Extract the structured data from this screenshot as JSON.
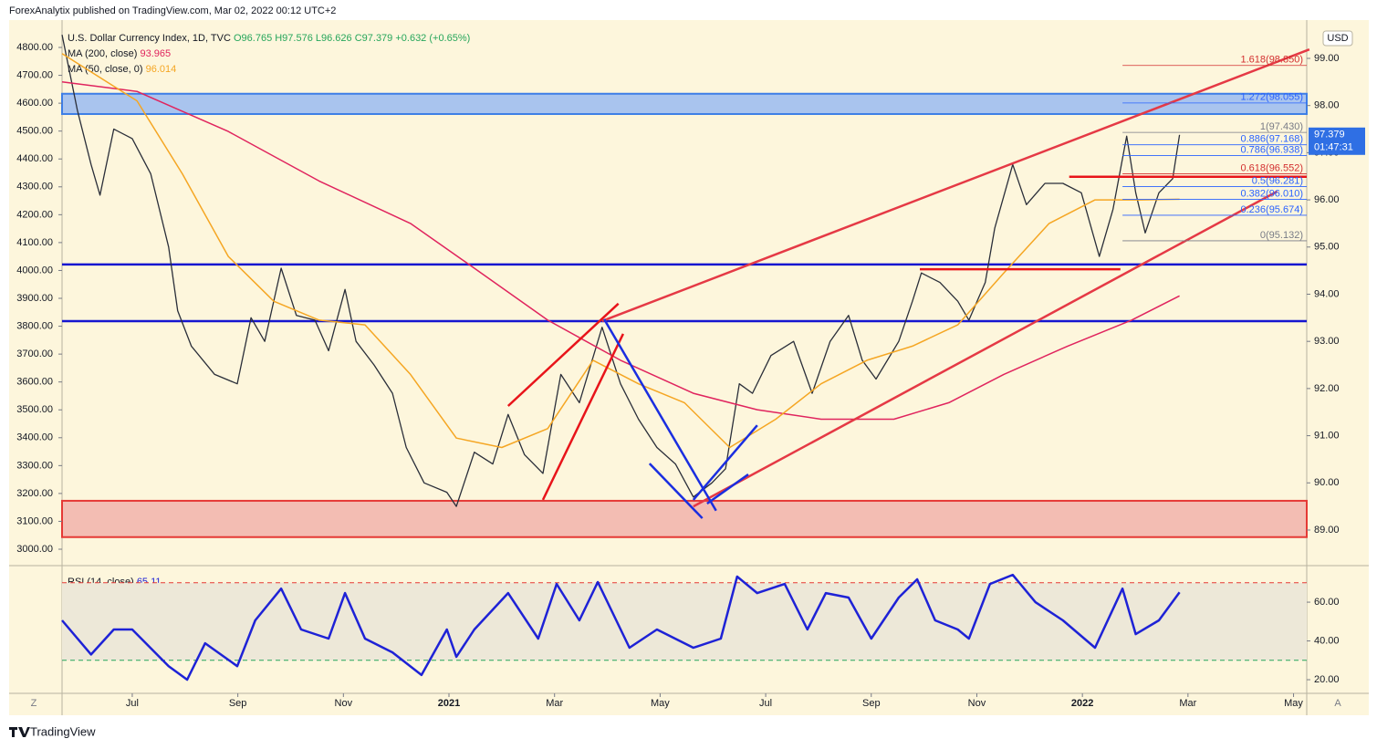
{
  "header": {
    "publisher": "ForexAnalytix published on TradingView.com, Mar 02, 2022 00:12 UTC+2"
  },
  "footer": "TradingView",
  "controls": {
    "zoom": "Z",
    "auto": "A"
  },
  "chart_data": [
    {
      "type": "line",
      "title": "U.S. Dollar Currency Index, 1D, TVC",
      "quote": "O96.765 H97.576 L96.626 C97.379 +0.632 (+0.65%)",
      "currency": "USD",
      "xlim": [
        4.67,
        28.25
      ],
      "xticks": [
        {
          "value": 6,
          "label": "Jul"
        },
        {
          "value": 8,
          "label": "Sep"
        },
        {
          "value": 10,
          "label": "Nov"
        },
        {
          "value": 12,
          "label": "2021"
        },
        {
          "value": 14,
          "label": "Mar"
        },
        {
          "value": 16,
          "label": "May"
        },
        {
          "value": 18,
          "label": "Jul"
        },
        {
          "value": 20,
          "label": "Sep"
        },
        {
          "value": 22,
          "label": "Nov"
        },
        {
          "value": 24,
          "label": "2022"
        },
        {
          "value": 26,
          "label": "Mar"
        },
        {
          "value": 28,
          "label": "May"
        }
      ],
      "ylim": [
        88.342,
        99.754
      ],
      "yticks": [
        {
          "value": 99,
          "label": "99.00"
        },
        {
          "value": 98,
          "label": "98.00"
        },
        {
          "value": 97,
          "label": "97.00"
        },
        {
          "value": 96,
          "label": "96.00"
        },
        {
          "value": 95,
          "label": "95.00"
        },
        {
          "value": 94,
          "label": "94.00"
        },
        {
          "value": 93,
          "label": "93.00"
        },
        {
          "value": 92,
          "label": "92.00"
        },
        {
          "value": 91,
          "label": "91.00"
        },
        {
          "value": 90,
          "label": "90.00"
        },
        {
          "value": 89,
          "label": "89.00"
        }
      ],
      "y2lim": [
        2957.5,
        4888.4
      ],
      "y2ticks": [
        {
          "value": 4800,
          "label": "4800.00"
        },
        {
          "value": 4700,
          "label": "4700.00"
        },
        {
          "value": 4600,
          "label": "4600.00"
        },
        {
          "value": 4500,
          "label": "4500.00"
        },
        {
          "value": 4400,
          "label": "4400.00"
        },
        {
          "value": 4300,
          "label": "4300.00"
        },
        {
          "value": 4200,
          "label": "4200.00"
        },
        {
          "value": 4100,
          "label": "4100.00"
        },
        {
          "value": 4000,
          "label": "4000.00"
        },
        {
          "value": 3900,
          "label": "3900.00"
        },
        {
          "value": 3800,
          "label": "3800.00"
        },
        {
          "value": 3700,
          "label": "3700.00"
        },
        {
          "value": 3600,
          "label": "3600.00"
        },
        {
          "value": 3500,
          "label": "3500.00"
        },
        {
          "value": 3400,
          "label": "3400.00"
        },
        {
          "value": 3300,
          "label": "3300.00"
        },
        {
          "value": 3200,
          "label": "3200.00"
        },
        {
          "value": 3100,
          "label": "3100.00"
        },
        {
          "value": 3000,
          "label": "3000.00"
        }
      ],
      "grid": false,
      "series": [
        {
          "color": "#2a2e39",
          "x": [
            4.67,
            4.96,
            5.22,
            5.39,
            5.65,
            6.0,
            6.35,
            6.69,
            6.86,
            7.12,
            7.56,
            7.99,
            8.25,
            8.51,
            8.82,
            9.11,
            9.46,
            9.72,
            10.03,
            10.24,
            10.58,
            10.93,
            11.19,
            11.53,
            11.96,
            12.14,
            12.48,
            12.83,
            13.12,
            13.43,
            13.78,
            14.12,
            14.47,
            14.9,
            15.25,
            15.59,
            15.94,
            16.29,
            16.63,
            16.98,
            17.24,
            17.5,
            17.75,
            18.1,
            18.53,
            18.88,
            19.22,
            19.57,
            19.83,
            20.09,
            20.52,
            20.78,
            20.95,
            21.3,
            21.64,
            21.85,
            22.16,
            22.34,
            22.68,
            22.94,
            23.29,
            23.63,
            23.98,
            24.32,
            24.58,
            24.84,
            25.01,
            25.19,
            25.45,
            25.71,
            25.84
          ],
          "values": [
            99.5,
            97.9,
            96.75,
            96.1,
            97.5,
            97.3,
            96.55,
            95.0,
            93.65,
            92.9,
            92.3,
            92.1,
            93.5,
            93.0,
            94.55,
            93.55,
            93.45,
            92.8,
            94.1,
            93.0,
            92.5,
            91.9,
            90.75,
            90.0,
            89.8,
            89.5,
            90.65,
            90.4,
            91.45,
            90.6,
            90.2,
            92.3,
            91.7,
            93.3,
            92.1,
            91.35,
            90.75,
            90.4,
            89.7,
            90.0,
            90.3,
            92.1,
            91.9,
            92.7,
            93.0,
            91.9,
            93.0,
            93.55,
            92.6,
            92.2,
            93.0,
            93.85,
            94.45,
            94.25,
            93.85,
            93.45,
            94.25,
            95.4,
            96.75,
            95.9,
            96.35,
            96.35,
            96.15,
            94.8,
            95.8,
            97.35,
            96.15,
            95.3,
            96.15,
            96.45,
            97.379
          ]
        },
        {
          "name": "MA (200, close)",
          "last": 93.965,
          "color": "#e0245e",
          "x": [
            4.67,
            6.09,
            7.82,
            9.54,
            11.27,
            12.48,
            13.87,
            15.25,
            16.63,
            17.84,
            19.05,
            20.43,
            21.47,
            22.51,
            23.72,
            24.93,
            25.84
          ],
          "values": [
            98.5,
            98.3,
            97.45,
            96.4,
            95.5,
            94.55,
            93.45,
            92.6,
            91.9,
            91.55,
            91.35,
            91.35,
            91.7,
            92.3,
            92.9,
            93.45,
            93.965
          ]
        },
        {
          "name": "MA (50, close, 0)",
          "last": 96.014,
          "color": "#f5a623",
          "x": [
            4.67,
            6.09,
            6.95,
            7.82,
            8.68,
            9.54,
            10.41,
            11.27,
            12.14,
            13.0,
            13.87,
            14.73,
            15.59,
            16.46,
            17.32,
            18.19,
            19.05,
            19.92,
            20.78,
            21.64,
            22.51,
            23.37,
            24.24,
            25.1,
            25.84
          ],
          "values": [
            99.1,
            98.1,
            96.55,
            94.8,
            93.85,
            93.45,
            93.35,
            92.3,
            90.95,
            90.75,
            91.15,
            92.6,
            92.1,
            91.7,
            90.75,
            91.35,
            92.1,
            92.6,
            92.9,
            93.35,
            94.45,
            95.5,
            96.0,
            96.0,
            96.014
          ]
        }
      ],
      "zones": [
        {
          "from": 97.82,
          "to": 98.25,
          "color": "#a9c4ee",
          "border": "#3d7ee6"
        },
        {
          "from": 88.85,
          "to": 89.62,
          "color": "#f3bdb3",
          "border": "#e53935"
        }
      ],
      "hlines": [
        {
          "value": 94.63,
          "color": "#1515d0"
        },
        {
          "value": 93.43,
          "color": "#1515d0"
        }
      ],
      "trendlines": [
        {
          "x": [
            14.9,
            28.3
          ],
          "y": [
            93.43,
            99.19
          ],
          "color": "#e53945"
        },
        {
          "x": [
            16.63,
            27.69
          ],
          "y": [
            89.5,
            96.18
          ],
          "color": "#e53945"
        },
        {
          "x": [
            13.12,
            15.21
          ],
          "y": [
            91.63,
            93.8
          ],
          "color": "#e8141a"
        },
        {
          "x": [
            13.78,
            15.3
          ],
          "y": [
            89.64,
            93.16
          ],
          "color": "#e8141a"
        },
        {
          "x": [
            14.94,
            17.06
          ],
          "y": [
            93.47,
            89.41
          ],
          "color": "#1a2ee0"
        },
        {
          "x": [
            15.8,
            16.8
          ],
          "y": [
            90.41,
            89.25
          ],
          "color": "#1a2ee0"
        },
        {
          "x": [
            16.63,
            17.84
          ],
          "y": [
            89.64,
            91.22
          ],
          "color": "#1a2ee0"
        },
        {
          "x": [
            16.89,
            17.67
          ],
          "y": [
            89.56,
            90.18
          ],
          "color": "#1a2ee0"
        },
        {
          "x": [
            20.92,
            24.72
          ],
          "y": [
            94.53,
            94.53
          ],
          "color": "#e8141a"
        },
        {
          "x": [
            23.75,
            28.25
          ],
          "y": [
            96.49,
            96.49
          ],
          "color": "#e8141a"
        }
      ],
      "fib_x": [
        24.76,
        28.25
      ],
      "fib_levels": [
        {
          "value": 98.85,
          "label": "1.618(98.850)",
          "color": "#d32f2f"
        },
        {
          "value": 98.055,
          "label": "1.272(98.055)",
          "color": "#2962ff"
        },
        {
          "value": 97.43,
          "label": "1(97.430)",
          "color": "#787b86"
        },
        {
          "value": 97.168,
          "label": "0.886(97.168)",
          "color": "#2962ff"
        },
        {
          "value": 96.938,
          "label": "0.786(96.938)",
          "color": "#2962ff"
        },
        {
          "value": 96.552,
          "label": "0.618(96.552)",
          "color": "#d32f2f"
        },
        {
          "value": 96.281,
          "label": "0.5(96.281)",
          "color": "#2962ff"
        },
        {
          "value": 96.01,
          "label": "0.382(96.010)",
          "color": "#2962ff"
        },
        {
          "value": 95.674,
          "label": "0.236(95.674)",
          "color": "#2962ff"
        },
        {
          "value": 95.132,
          "label": "0(95.132)",
          "color": "#787b86"
        }
      ],
      "price_tag": 97.379,
      "countdown": "01:47:31"
    },
    {
      "type": "line",
      "title": "RSI (14, close)",
      "ylim": [
        13.9,
        76.5
      ],
      "yticks": [
        {
          "value": 60,
          "label": "60.00"
        },
        {
          "value": 40,
          "label": "40.00"
        },
        {
          "value": 20,
          "label": "20.00"
        }
      ],
      "levels": [
        {
          "value": 70,
          "color": "#e53935"
        },
        {
          "value": 30,
          "color": "#26a65b"
        }
      ],
      "series": [
        {
          "last": 65.11,
          "color": "#1e22d6",
          "x": [
            4.67,
            5.22,
            5.65,
            6.0,
            6.69,
            7.04,
            7.38,
            7.99,
            8.33,
            8.82,
            9.2,
            9.72,
            10.03,
            10.41,
            10.93,
            11.48,
            11.96,
            12.14,
            12.48,
            13.12,
            13.69,
            14.04,
            14.47,
            14.82,
            15.42,
            15.94,
            16.63,
            17.15,
            17.46,
            17.84,
            18.36,
            18.79,
            19.14,
            19.57,
            20.0,
            20.52,
            20.87,
            21.21,
            21.64,
            21.85,
            22.25,
            22.68,
            23.11,
            23.63,
            24.24,
            24.76,
            25.01,
            25.45,
            25.84
          ],
          "values": [
            50.6,
            33,
            45.9,
            45.9,
            27,
            20,
            38.8,
            27,
            50.6,
            67,
            45.9,
            41.2,
            64.7,
            41.2,
            34.1,
            22.4,
            45.9,
            31.8,
            45.9,
            64.7,
            41.2,
            69.4,
            50.6,
            70.4,
            36.5,
            45.9,
            36.5,
            41.2,
            73.2,
            64.7,
            69.4,
            45.9,
            64.7,
            62.4,
            41.2,
            62.4,
            71.8,
            50.6,
            45.9,
            41.2,
            69.4,
            74.1,
            60,
            50.6,
            36.5,
            67,
            43.5,
            50.6,
            65.11
          ]
        }
      ]
    }
  ]
}
